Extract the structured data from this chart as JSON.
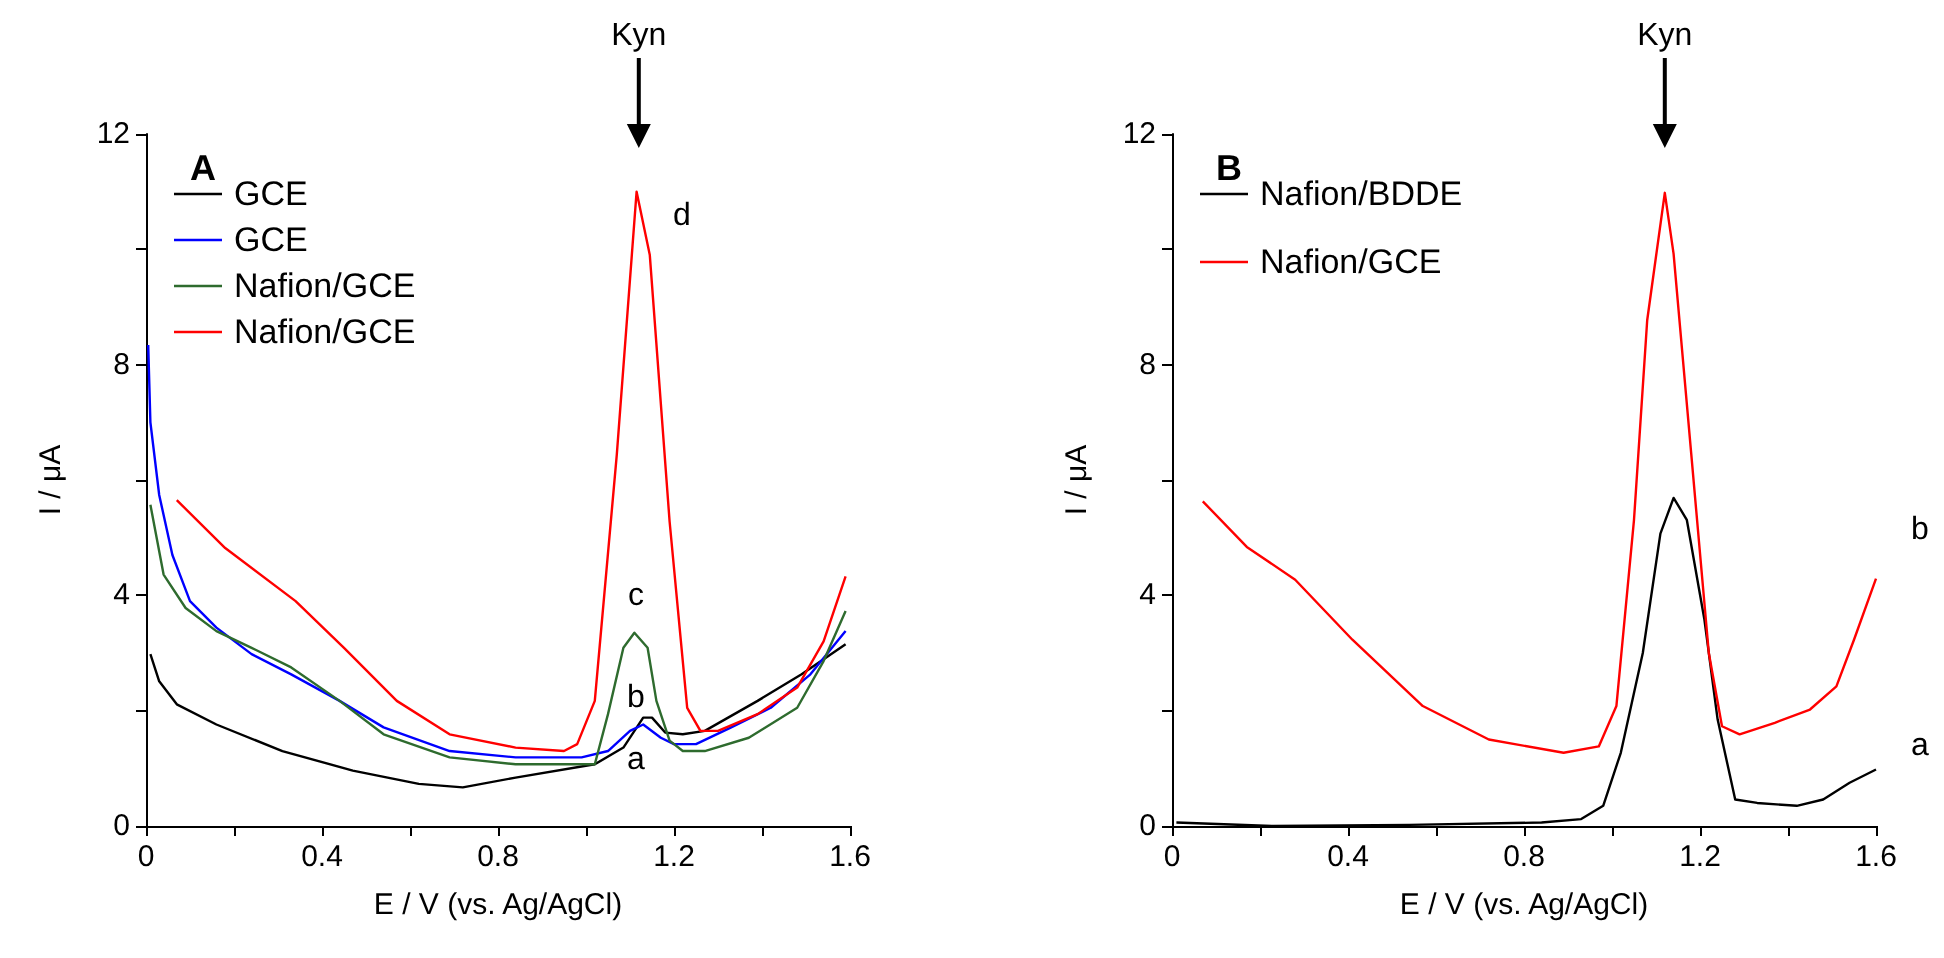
{
  "chart_data": [
    {
      "type": "line",
      "title": "A",
      "xlabel": "E / V (vs. Ag/AgCl)",
      "ylabel": "I / μA",
      "xlim": [
        0,
        1.6
      ],
      "ylim": [
        0,
        12
      ],
      "xticks": [
        0,
        {
          "value": 0.2,
          "label": null
        },
        0.4,
        {
          "value": 0.6,
          "label": null
        },
        0.8,
        {
          "value": 1.0,
          "label": null
        },
        1.2,
        {
          "value": 1.4,
          "label": null
        },
        1.6
      ],
      "yticks": [
        0,
        {
          "value": 2,
          "label": null
        },
        4,
        {
          "value": 6,
          "label": null
        },
        8,
        {
          "value": 10,
          "label": null
        },
        12
      ],
      "grid": false,
      "legend": "top left",
      "annotations": [
        {
          "text": "Kyn",
          "x": 1.12
        },
        "a",
        "b",
        "c",
        "d"
      ],
      "series": [
        {
          "name": "GCE",
          "color": "#000000",
          "x": [
            0.01,
            0.03,
            0.07,
            0.16,
            0.31,
            0.47,
            0.62,
            0.72,
            0.84,
            1.02,
            1.085,
            1.13,
            1.15,
            1.18,
            1.22,
            1.27,
            1.39,
            1.49,
            1.59
          ],
          "values": [
            2.98,
            2.51,
            2.11,
            1.76,
            1.3,
            0.96,
            0.73,
            0.67,
            0.84,
            1.07,
            1.36,
            1.88,
            1.88,
            1.62,
            1.59,
            1.65,
            2.17,
            2.63,
            3.15
          ]
        },
        {
          "name": "GCE",
          "color": "#0000ff",
          "x": [
            0.005,
            0.01,
            0.03,
            0.06,
            0.1,
            0.16,
            0.24,
            0.33,
            0.44,
            0.54,
            0.69,
            0.84,
            0.99,
            1.05,
            1.1,
            1.13,
            1.17,
            1.2,
            1.25,
            1.33,
            1.42,
            1.51,
            1.59
          ],
          "values": [
            8.34,
            7.0,
            5.74,
            4.7,
            3.9,
            3.44,
            2.98,
            2.63,
            2.17,
            1.71,
            1.3,
            1.19,
            1.19,
            1.3,
            1.65,
            1.76,
            1.53,
            1.42,
            1.42,
            1.71,
            2.05,
            2.63,
            3.38
          ]
        },
        {
          "name": "Nafion/GCE",
          "color": "#2e6b2e",
          "x": [
            0.01,
            0.04,
            0.09,
            0.16,
            0.24,
            0.33,
            0.44,
            0.54,
            0.69,
            0.84,
            1.02,
            1.05,
            1.085,
            1.11,
            1.14,
            1.16,
            1.19,
            1.22,
            1.27,
            1.37,
            1.48,
            1.54,
            1.59
          ],
          "values": [
            5.57,
            4.36,
            3.78,
            3.38,
            3.09,
            2.75,
            2.17,
            1.59,
            1.19,
            1.07,
            1.07,
            1.94,
            3.09,
            3.35,
            3.09,
            2.17,
            1.48,
            1.3,
            1.3,
            1.53,
            2.05,
            2.86,
            3.73
          ]
        },
        {
          "name": "Nafion/GCE",
          "color": "#ff0000",
          "x": [
            0.07,
            0.18,
            0.34,
            0.45,
            0.57,
            0.69,
            0.84,
            0.95,
            0.98,
            1.02,
            1.07,
            1.115,
            1.145,
            1.19,
            1.23,
            1.26,
            1.3,
            1.39,
            1.48,
            1.54,
            1.59
          ],
          "values": [
            5.65,
            4.82,
            3.9,
            3.09,
            2.17,
            1.59,
            1.36,
            1.3,
            1.42,
            2.17,
            6.44,
            11.0,
            9.9,
            5.28,
            2.05,
            1.65,
            1.65,
            1.94,
            2.4,
            3.2,
            4.33
          ]
        }
      ]
    },
    {
      "type": "line",
      "title": "B",
      "xlabel": "E / V (vs. Ag/AgCl)",
      "ylabel": "I / μA",
      "xlim": [
        0,
        1.6
      ],
      "ylim": [
        0,
        12
      ],
      "xticks": [
        0,
        {
          "value": 0.2,
          "label": null
        },
        0.4,
        {
          "value": 0.6,
          "label": null
        },
        0.8,
        {
          "value": 1.0,
          "label": null
        },
        1.2,
        {
          "value": 1.4,
          "label": null
        },
        1.6
      ],
      "yticks": [
        0,
        {
          "value": 2,
          "label": null
        },
        4,
        {
          "value": 6,
          "label": null
        },
        8,
        {
          "value": 10,
          "label": null
        },
        12
      ],
      "grid": false,
      "legend": "top left",
      "annotations": [
        {
          "text": "Kyn",
          "x": 1.12
        },
        "b",
        "a"
      ],
      "series": [
        {
          "name": "Nafion/BDDE",
          "color": "#000000",
          "x": [
            0.01,
            0.23,
            0.54,
            0.84,
            0.93,
            0.98,
            1.02,
            1.07,
            1.11,
            1.14,
            1.17,
            1.21,
            1.24,
            1.28,
            1.33,
            1.42,
            1.48,
            1.54,
            1.6
          ],
          "values": [
            0.06,
            0,
            0.02,
            0.06,
            0.12,
            0.35,
            1.27,
            3.0,
            5.07,
            5.69,
            5.31,
            3.58,
            1.85,
            0.46,
            0.4,
            0.35,
            0.46,
            0.75,
            0.98
          ]
        },
        {
          "name": "Nafion/GCE",
          "color": "#ff0000",
          "x": [
            0.07,
            0.17,
            0.28,
            0.41,
            0.57,
            0.72,
            0.89,
            0.97,
            1.01,
            1.05,
            1.08,
            1.12,
            1.14,
            1.18,
            1.22,
            1.25,
            1.29,
            1.37,
            1.45,
            1.51,
            1.55,
            1.6
          ],
          "values": [
            5.63,
            4.84,
            4.27,
            3.23,
            2.08,
            1.5,
            1.27,
            1.38,
            2.08,
            5.31,
            8.77,
            10.98,
            9.92,
            6.46,
            3.0,
            1.73,
            1.59,
            1.79,
            2.02,
            2.42,
            3.23,
            4.29
          ]
        }
      ]
    }
  ]
}
